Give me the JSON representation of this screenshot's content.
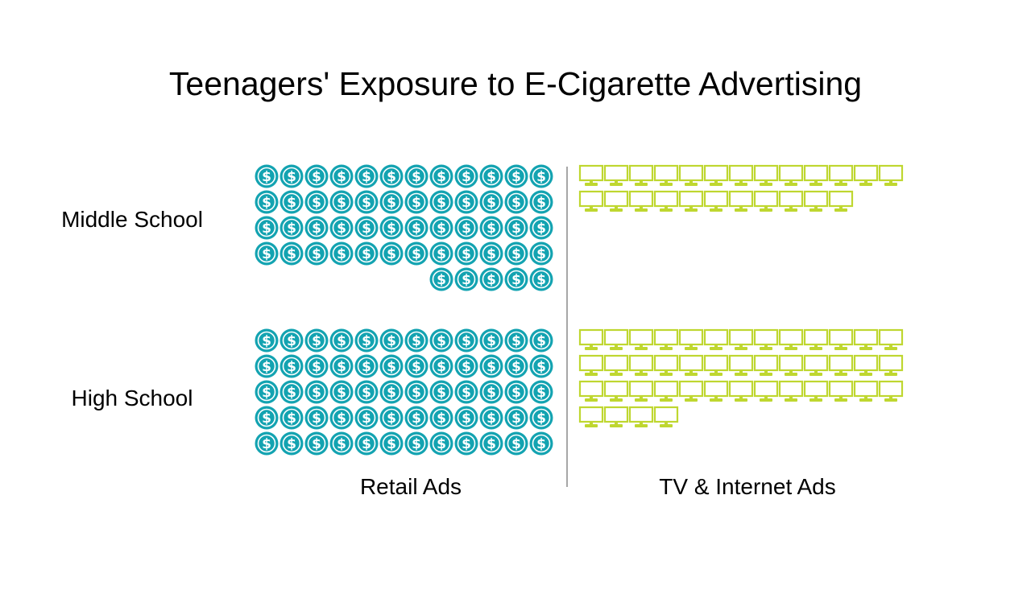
{
  "chart_data": {
    "type": "pictograph",
    "title": "Teenagers' Exposure to E-Cigarette Advertising",
    "rows": [
      "Middle School",
      "High School"
    ],
    "columns": [
      "Retail Ads",
      "TV & Internet Ads"
    ],
    "icons": {
      "Retail Ads": "dollar-coin-icon",
      "TV & Internet Ads": "monitor-icon"
    },
    "colors": {
      "Retail Ads": "#13A3B1",
      "TV & Internet Ads": "#BFD730",
      "divider": "#8a8a8a"
    },
    "icons_per_row": 12,
    "series": [
      {
        "name": "Retail Ads",
        "values": [
          53,
          60
        ]
      },
      {
        "name": "TV & Internet Ads",
        "values": [
          24,
          43
        ]
      }
    ]
  }
}
